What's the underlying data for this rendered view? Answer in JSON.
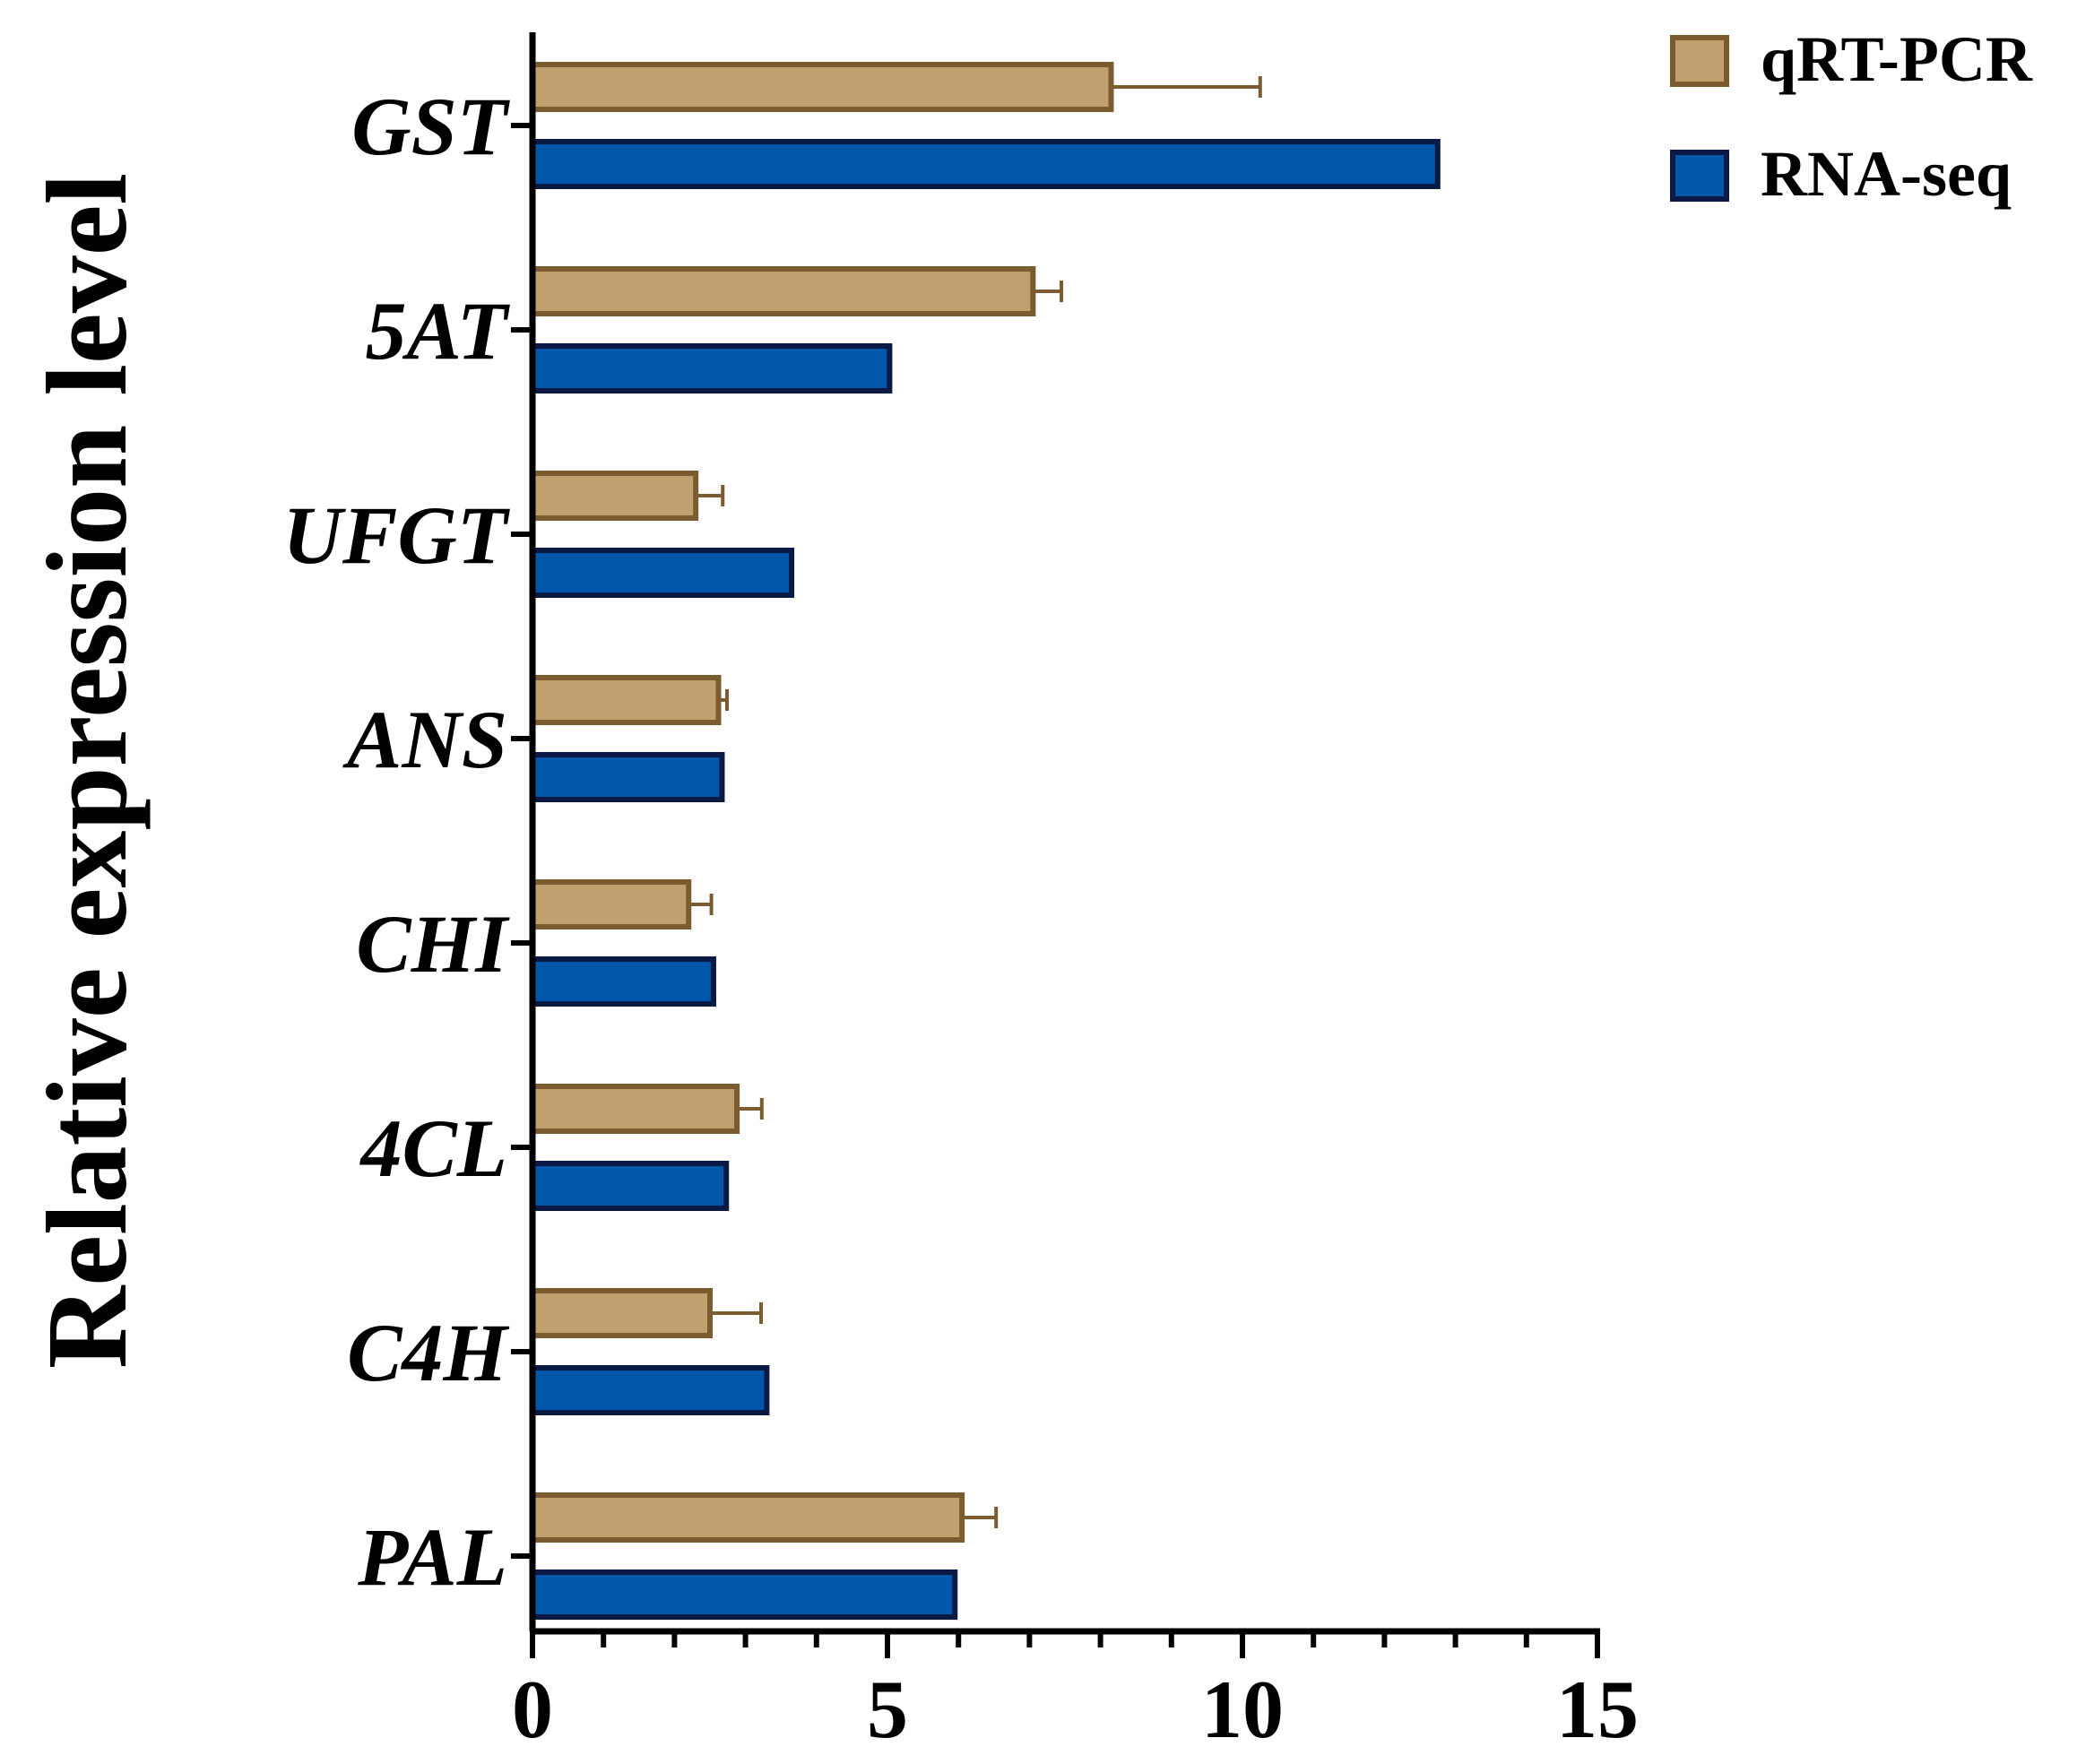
{
  "chart_data": {
    "type": "bar",
    "orientation": "horizontal",
    "title": "",
    "xlabel": "",
    "ylabel": "Relative expression level",
    "categories": [
      "GST",
      "5AT",
      "UFGT",
      "ANS",
      "CHI",
      "4CL",
      "C4H",
      "PAL"
    ],
    "xlim": [
      0,
      15
    ],
    "x_ticks": [
      "0",
      "5",
      "10",
      "15"
    ],
    "grid": false,
    "legend_position": "top-right",
    "series": [
      {
        "name": "qRT-PCR",
        "color": "#c19f6f",
        "edge_color": "#7a5c30",
        "values": [
          8.15,
          7.05,
          2.3,
          2.62,
          2.2,
          2.88,
          2.5,
          6.05
        ],
        "errors": [
          2.1,
          0.4,
          0.38,
          0.12,
          0.32,
          0.35,
          0.72,
          0.48
        ]
      },
      {
        "name": "RNA-seq",
        "color": "#0056a8",
        "edge_color": "#0a1a44",
        "values": [
          12.75,
          5.03,
          3.65,
          2.67,
          2.55,
          2.73,
          3.3,
          5.95
        ],
        "errors": []
      }
    ]
  }
}
